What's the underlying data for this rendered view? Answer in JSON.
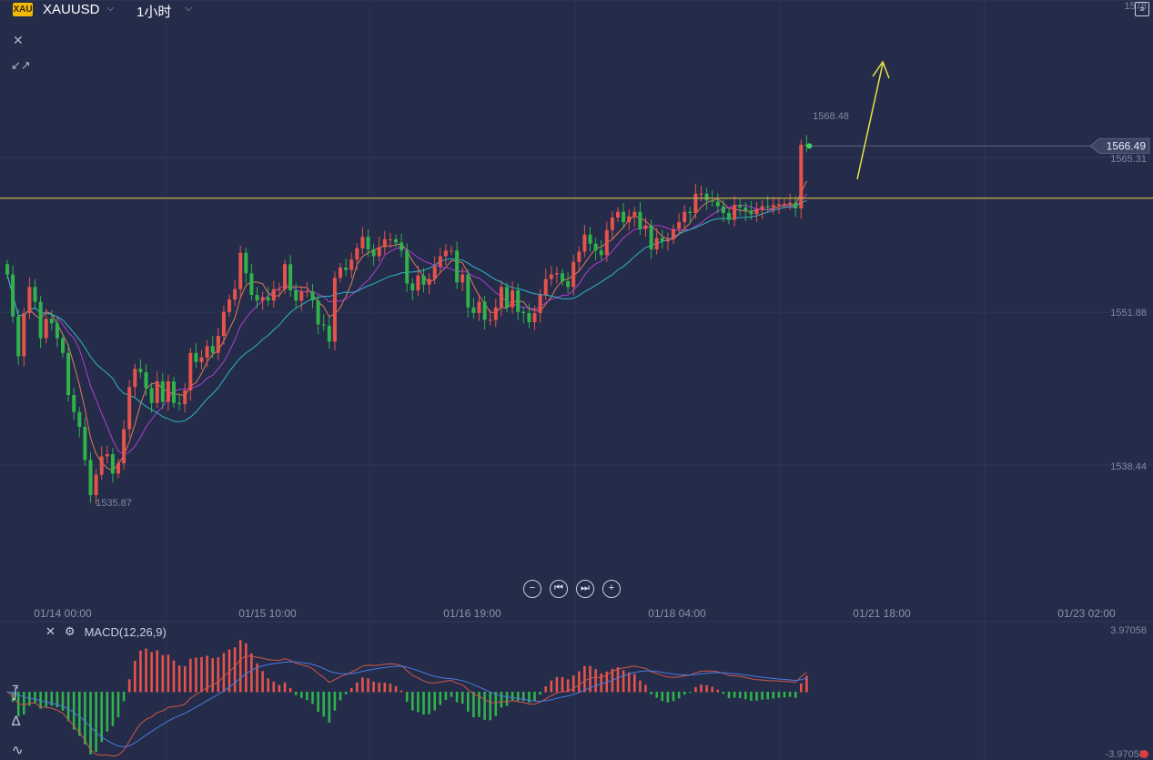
{
  "header": {
    "badge": "XAU",
    "symbol": "XAUUSD",
    "timeframe": "1小时"
  },
  "icons": {
    "symbol_dropdown": "chevron-down-icon",
    "timeframe_dropdown": "chevron-down-icon",
    "close": "close-icon",
    "collapse": "collapse-arrows-icon",
    "layout": "layout-toggle-icon",
    "macd_close": "close-icon",
    "macd_settings": "gear-icon",
    "zoom_out": "minus-circle-icon",
    "scroll_start": "skip-back-icon",
    "scroll_end": "skip-forward-icon",
    "zoom_in": "plus-circle-icon",
    "tool_indicator": "chart-indicator-icon",
    "tool_draw": "drawing-tool-icon",
    "tool_wave": "waveform-icon"
  },
  "colors": {
    "background": "#242c49",
    "up": "#e5534b",
    "down": "#2fb34a",
    "ma_fast": "#e07a5f",
    "ma_mid": "#b33cd0",
    "ma_slow": "#2fb5c9",
    "horizontal_line": "#c8b04a",
    "arrow": "#e8e34a",
    "dif": "#d0564a",
    "dea": "#4b7be0"
  },
  "indicator": {
    "label": "MACD(12,26,9)"
  },
  "chart_data": {
    "type": "candlestick",
    "symbol": "XAUUSD",
    "timeframe": "1小时",
    "y_ticks": [
      "1578",
      "1565.31",
      "1551.88",
      "1538.44"
    ],
    "x_ticks": [
      "01/14 00:00",
      "01/15 10:00",
      "01/16 19:00",
      "01/18 04:00",
      "01/21 18:00",
      "01/23 02:00"
    ],
    "current_price": "1566.49",
    "high_label": "1568.48",
    "low_label": "1535.87",
    "horizontal_line_price": 1561.9,
    "macd_range": [
      "3.97058",
      "-3.97058"
    ],
    "closes": [
      1555.2,
      1551.5,
      1548.0,
      1551.8,
      1554.1,
      1552.8,
      1549.6,
      1551.3,
      1550.9,
      1549.6,
      1548.3,
      1544.6,
      1543.1,
      1541.8,
      1538.9,
      1535.8,
      1537.6,
      1539.2,
      1539.4,
      1537.7,
      1538.6,
      1541.6,
      1545.3,
      1546.9,
      1546.6,
      1545.2,
      1543.9,
      1545.8,
      1544.0,
      1545.8,
      1543.9,
      1543.8,
      1545.0,
      1548.3,
      1547.5,
      1547.9,
      1548.9,
      1548.3,
      1549.8,
      1551.9,
      1553.0,
      1553.9,
      1557.1,
      1555.3,
      1553.4,
      1552.9,
      1553.2,
      1552.9,
      1553.9,
      1553.9,
      1556.1,
      1553.8,
      1552.9,
      1553.7,
      1553.7,
      1552.9,
      1550.8,
      1550.7,
      1549.3,
      1554.9,
      1555.8,
      1555.6,
      1556.5,
      1557.5,
      1558.5,
      1557.4,
      1556.8,
      1557.6,
      1558.3,
      1558.3,
      1558.0,
      1557.3,
      1554.4,
      1553.8,
      1555.1,
      1554.3,
      1554.8,
      1555.9,
      1556.8,
      1557.3,
      1557.3,
      1554.5,
      1555.2,
      1552.3,
      1551.8,
      1552.8,
      1551.2,
      1551.2,
      1552.3,
      1554.1,
      1552.3,
      1553.8,
      1551.9,
      1551.8,
      1551.0,
      1551.8,
      1553.4,
      1554.8,
      1555.2,
      1555.3,
      1554.6,
      1554.1,
      1556.3,
      1557.2,
      1558.7,
      1557.9,
      1557.3,
      1556.9,
      1559.1,
      1560.2,
      1560.7,
      1559.8,
      1560.3,
      1560.7,
      1559.2,
      1559.5,
      1557.4,
      1558.4,
      1558.1,
      1558.3,
      1559.2,
      1559.8,
      1560.7,
      1560.6,
      1562.3,
      1562.3,
      1561.7,
      1561.6,
      1561.2,
      1560.6,
      1560.0,
      1561.3,
      1561.1,
      1560.8,
      1560.5,
      1560.9,
      1561.2,
      1561.1,
      1561.3,
      1561.4,
      1561.4,
      1561.5,
      1561.0,
      1566.6,
      1566.5
    ]
  }
}
